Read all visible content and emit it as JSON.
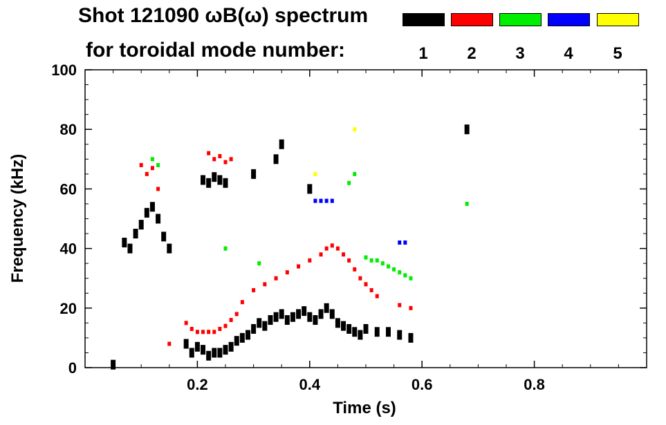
{
  "chart_data": {
    "type": "scatter",
    "title": "Shot 121090 ωB(ω) spectrum",
    "subtitle": "for toroidal mode number:",
    "xlabel": "Time (s)",
    "ylabel": "Frequency (kHz)",
    "xlim": [
      0.0,
      1.0
    ],
    "ylim": [
      0,
      100
    ],
    "x_ticks": [
      "0.2",
      "0.4",
      "0.6",
      "0.8"
    ],
    "x_tick_values": [
      0.2,
      0.4,
      0.6,
      0.8
    ],
    "y_ticks": [
      "0",
      "20",
      "40",
      "60",
      "80",
      "100"
    ],
    "y_tick_values": [
      0,
      20,
      40,
      60,
      80,
      100
    ],
    "legend": [
      {
        "label": "1",
        "color": "#000000"
      },
      {
        "label": "2",
        "color": "#ff0000"
      },
      {
        "label": "3",
        "color": "#00ee00"
      },
      {
        "label": "4",
        "color": "#0000ff"
      },
      {
        "label": "5",
        "color": "#ffff00"
      }
    ],
    "series": [
      {
        "name": "n=1",
        "color": "#000000",
        "x": [
          0.05,
          0.07,
          0.08,
          0.09,
          0.1,
          0.11,
          0.12,
          0.13,
          0.14,
          0.15,
          0.18,
          0.19,
          0.2,
          0.21,
          0.22,
          0.23,
          0.24,
          0.25,
          0.26,
          0.27,
          0.28,
          0.29,
          0.3,
          0.31,
          0.32,
          0.33,
          0.34,
          0.35,
          0.36,
          0.37,
          0.38,
          0.39,
          0.4,
          0.41,
          0.42,
          0.43,
          0.44,
          0.45,
          0.46,
          0.47,
          0.48,
          0.49,
          0.5,
          0.52,
          0.54,
          0.56,
          0.58,
          0.21,
          0.22,
          0.23,
          0.24,
          0.25,
          0.3,
          0.34,
          0.35,
          0.4,
          0.68
        ],
        "y": [
          1,
          42,
          40,
          45,
          48,
          52,
          54,
          50,
          44,
          40,
          8,
          5,
          7,
          6,
          4,
          5,
          5,
          6,
          7,
          9,
          10,
          11,
          13,
          15,
          14,
          16,
          17,
          18,
          16,
          17,
          18,
          19,
          17,
          16,
          18,
          20,
          18,
          15,
          14,
          13,
          12,
          11,
          13,
          12,
          12,
          11,
          10,
          63,
          62,
          64,
          63,
          62,
          65,
          70,
          75,
          60,
          80
        ]
      },
      {
        "name": "n=2",
        "color": "#ff0000",
        "x": [
          0.1,
          0.11,
          0.12,
          0.13,
          0.18,
          0.19,
          0.2,
          0.21,
          0.22,
          0.23,
          0.24,
          0.25,
          0.26,
          0.27,
          0.28,
          0.3,
          0.32,
          0.34,
          0.36,
          0.38,
          0.4,
          0.42,
          0.43,
          0.44,
          0.45,
          0.46,
          0.47,
          0.48,
          0.49,
          0.5,
          0.51,
          0.52,
          0.56,
          0.58,
          0.22,
          0.23,
          0.24,
          0.25,
          0.26,
          0.15,
          0.25
        ],
        "y": [
          68,
          65,
          67,
          60,
          15,
          13,
          12,
          12,
          12,
          12,
          13,
          14,
          16,
          18,
          22,
          26,
          28,
          30,
          32,
          34,
          36,
          38,
          40,
          41,
          40,
          38,
          36,
          33,
          30,
          28,
          26,
          24,
          21,
          20,
          72,
          70,
          71,
          69,
          70,
          8,
          40
        ]
      },
      {
        "name": "n=3",
        "color": "#00ee00",
        "x": [
          0.12,
          0.13,
          0.5,
          0.51,
          0.52,
          0.53,
          0.54,
          0.55,
          0.56,
          0.57,
          0.58,
          0.47,
          0.48,
          0.68,
          0.25,
          0.31
        ],
        "y": [
          70,
          68,
          37,
          36,
          36,
          35,
          34,
          33,
          32,
          31,
          30,
          62,
          65,
          55,
          40,
          35
        ]
      },
      {
        "name": "n=4",
        "color": "#0000ff",
        "x": [
          0.41,
          0.42,
          0.43,
          0.44,
          0.56,
          0.57
        ],
        "y": [
          56,
          56,
          56,
          56,
          42,
          42
        ]
      },
      {
        "name": "n=5",
        "color": "#ffff00",
        "x": [
          0.41,
          0.48
        ],
        "y": [
          65,
          80
        ]
      }
    ]
  }
}
